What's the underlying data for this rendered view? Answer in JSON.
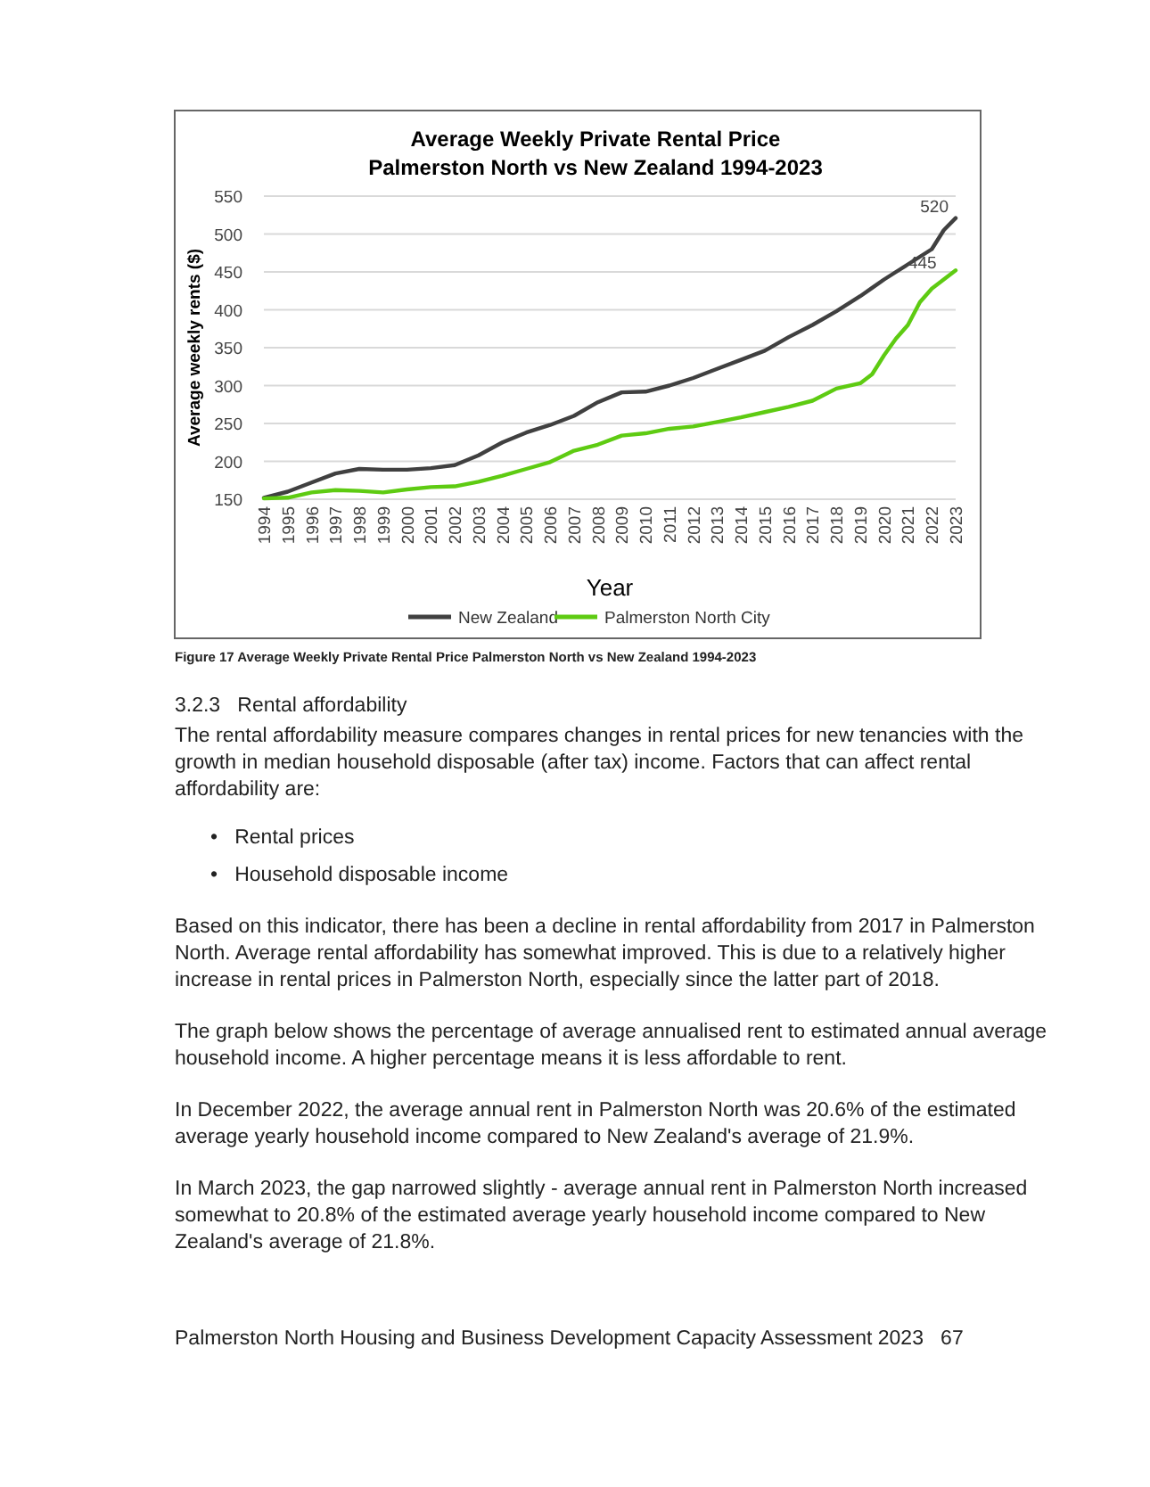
{
  "chart_data": {
    "type": "line",
    "title": "Average Weekly Private Rental Price",
    "subtitle": "Palmerston North vs New Zealand 1994-2023",
    "xlabel": "Year",
    "ylabel": "Average weekly rents ($)",
    "x": [
      1994,
      1995,
      1996,
      1997,
      1998,
      1999,
      2000,
      2001,
      2002,
      2003,
      2004,
      2005,
      2006,
      2007,
      2008,
      2009,
      2010,
      2011,
      2012,
      2013,
      2014,
      2015,
      2016,
      2017,
      2018,
      2019,
      2019.5,
      2020,
      2020.5,
      2021,
      2021.5,
      2022,
      2022.5,
      2023
    ],
    "xlim": [
      1994,
      2023
    ],
    "xticks": [
      1994,
      1995,
      1996,
      1997,
      1998,
      1999,
      2000,
      2001,
      2002,
      2003,
      2004,
      2005,
      2006,
      2007,
      2008,
      2009,
      2010,
      2011,
      2012,
      2013,
      2014,
      2015,
      2016,
      2017,
      2018,
      2019,
      2020,
      2021,
      2022,
      2023
    ],
    "ylim": [
      150,
      550
    ],
    "yticks": [
      150,
      200,
      250,
      300,
      350,
      400,
      450,
      500,
      550
    ],
    "grid": "y",
    "legend": "bottom",
    "series": [
      {
        "name": "New Zealand",
        "color": "#404040",
        "values": [
          152,
          160,
          172,
          184,
          190,
          189,
          189,
          191,
          195,
          208,
          225,
          238,
          248,
          260,
          278,
          291,
          292,
          300,
          310,
          322,
          334,
          346,
          364,
          380,
          398,
          418,
          429,
          440,
          450,
          460,
          470,
          480,
          505,
          521
        ]
      },
      {
        "name": "Palmerston North City",
        "color": "#5ecb12",
        "values": [
          151,
          152,
          159,
          162,
          161,
          159,
          163,
          166,
          167,
          173,
          181,
          190,
          199,
          214,
          222,
          234,
          237,
          243,
          246,
          252,
          258,
          265,
          272,
          280,
          296,
          303,
          315,
          340,
          362,
          380,
          410,
          428,
          440,
          452
        ]
      }
    ],
    "annotations": [
      {
        "text": "520",
        "x": 2023,
        "y": 520
      },
      {
        "text": "445",
        "x": 2022.5,
        "y": 445
      },
      "Figure 17 Average Weekly Private Rental Price Palmerston North vs New Zealand 1994-2023",
      "3.2.3   Rental affordability",
      "The rental affordability measure compares changes in rental prices for new tenancies with the growth in median household disposable (after tax) income. Factors that can affect rental affordability are:",
      "•   Rental prices",
      "•   Household disposable income",
      "Based on this indicator, there has been a decline in rental affordability from 2017 in Palmerston North. Average rental affordability has somewhat improved. This is due to a relatively higher increase in rental prices in Palmerston North, especially since the latter part of 2018.",
      "The graph below shows the percentage of average annualised rent to estimated annual average household income. A higher percentage means it is less affordable to rent.",
      "In December 2022, the average annual rent in Palmerston North was 20.6% of the estimated average yearly household income compared to New Zealand's average of 21.9%.",
      "In March 2023, the gap narrowed slightly - average annual rent in Palmerston North increased somewhat to 20.8% of the estimated average yearly household income compared to New Zealand's average of 21.8%.",
      "Palmerston North Housing and Business Development Capacity Assessment 2023   67"
    ]
  }
}
